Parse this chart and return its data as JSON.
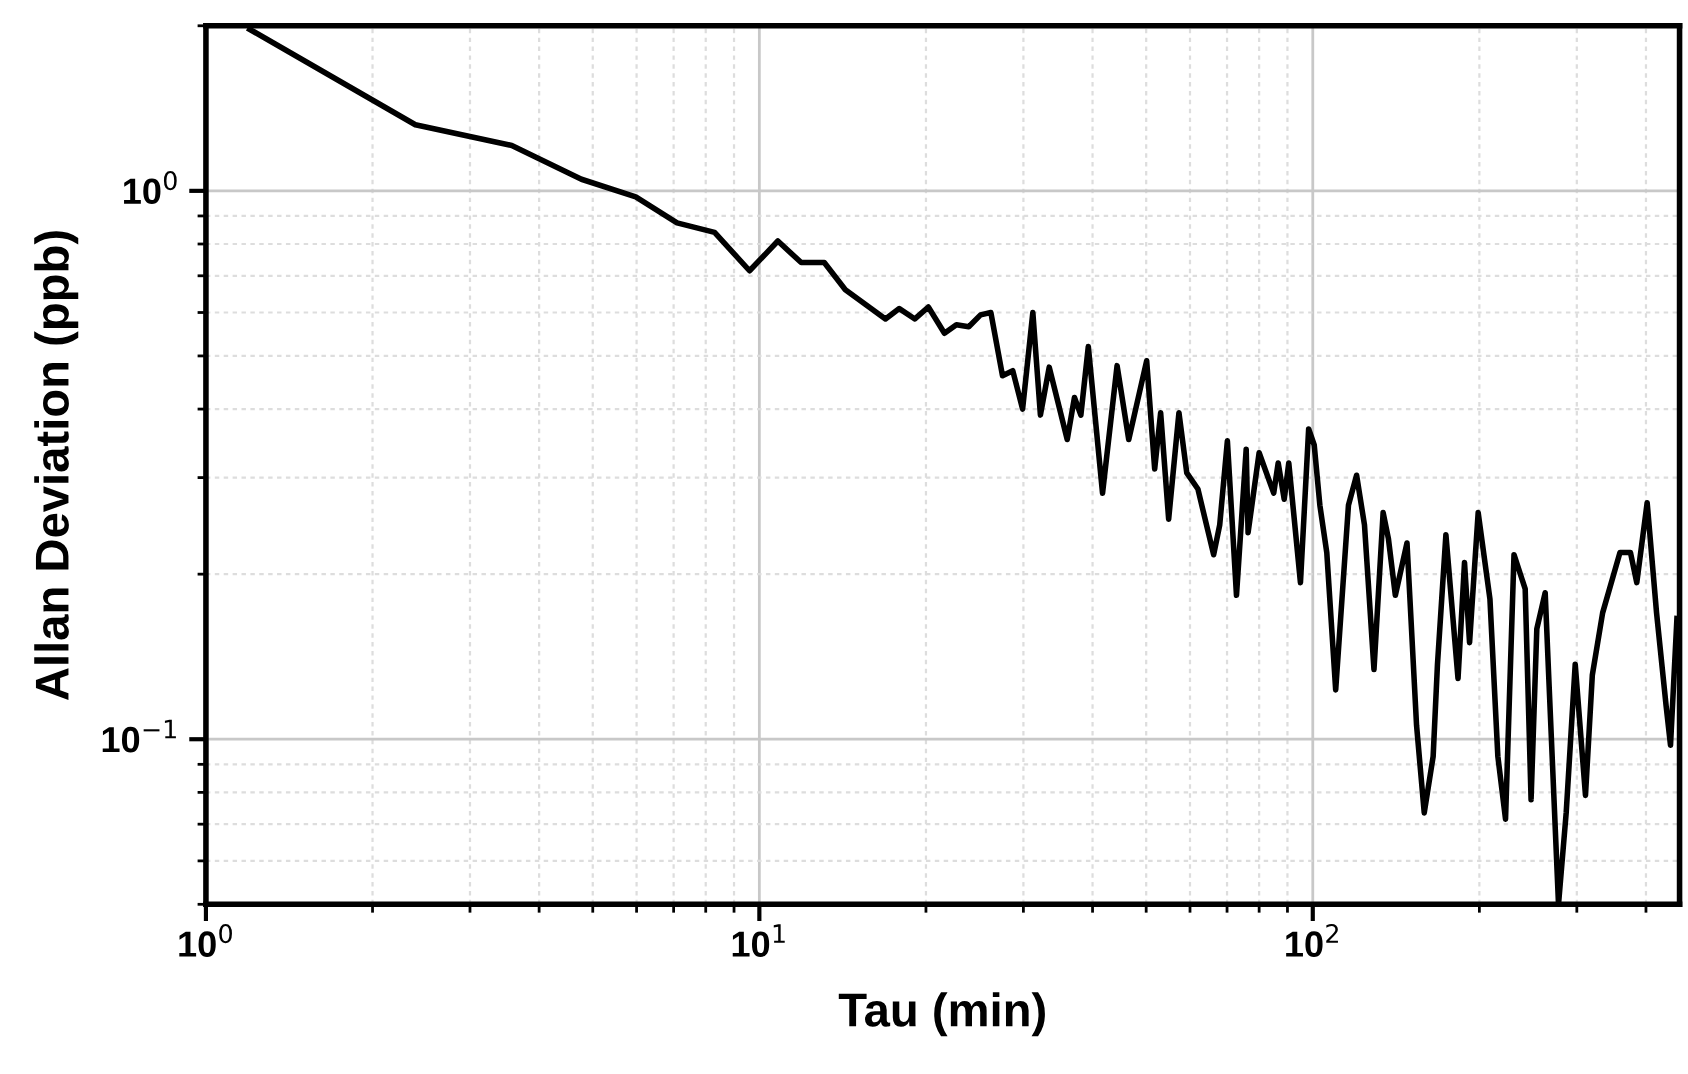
{
  "chart_data": {
    "type": "line",
    "xlabel": "Tau (min)",
    "ylabel": "Allan Deviation (ppb)",
    "log": "xy",
    "grid": true,
    "marker": "none",
    "line_style": "solid",
    "xlim": [
      1,
      460
    ],
    "ylim": [
      0.05,
      2
    ],
    "xticks": [
      {
        "value": 1,
        "label": "10$^{0}$"
      },
      {
        "value": 10,
        "label": "10$^{1}$"
      },
      {
        "value": 100,
        "label": "10$^{2}$"
      }
    ],
    "yticks": [
      {
        "value": 0.1,
        "label": "10$^{−1}$"
      },
      {
        "value": 1,
        "label": "10$^{0}$"
      }
    ],
    "series": [
      {
        "color": "#000000",
        "x": [
          1.2,
          2.39,
          3.57,
          4.77,
          5.98,
          7.1,
          8.3,
          9.6,
          10.8,
          11.9,
          13.1,
          14.3,
          16.9,
          17.9,
          19.1,
          20.2,
          21.6,
          22.7,
          23.9,
          25.1,
          26.2,
          27.5,
          28.7,
          29.9,
          31.2,
          32.2,
          33.4,
          36.0,
          37.1,
          38.1,
          39.3,
          41.7,
          44.3,
          46.5,
          50.1,
          51.8,
          53.1,
          54.9,
          57.3,
          59.2,
          62.0,
          66.2,
          67.9,
          70.1,
          72.8,
          75.8,
          76.4,
          80.0,
          85.0,
          86.6,
          88.8,
          90.5,
          95.0,
          98.3,
          100.6,
          103,
          106,
          110,
          116,
          120,
          124,
          129,
          134,
          137,
          141,
          148,
          154,
          159,
          165,
          168,
          174,
          183,
          188,
          192,
          199,
          209,
          216,
          223,
          231,
          242,
          248,
          254,
          263,
          267,
          278,
          287,
          298,
          311,
          320,
          334,
          359,
          375,
          385,
          402,
          418,
          435,
          443,
          455
        ],
        "values": [
          1.97,
          1.32,
          1.21,
          1.05,
          0.975,
          0.874,
          0.84,
          0.715,
          0.81,
          0.74,
          0.74,
          0.66,
          0.584,
          0.61,
          0.584,
          0.614,
          0.55,
          0.57,
          0.565,
          0.594,
          0.6,
          0.46,
          0.47,
          0.4,
          0.6,
          0.39,
          0.477,
          0.352,
          0.42,
          0.39,
          0.52,
          0.281,
          0.48,
          0.352,
          0.49,
          0.311,
          0.394,
          0.252,
          0.394,
          0.306,
          0.286,
          0.217,
          0.246,
          0.35,
          0.183,
          0.338,
          0.238,
          0.333,
          0.281,
          0.319,
          0.274,
          0.319,
          0.193,
          0.368,
          0.344,
          0.267,
          0.219,
          0.123,
          0.267,
          0.303,
          0.246,
          0.134,
          0.259,
          0.232,
          0.183,
          0.228,
          0.106,
          0.0734,
          0.093,
          0.137,
          0.236,
          0.129,
          0.21,
          0.15,
          0.259,
          0.18,
          0.093,
          0.0715,
          0.217,
          0.188,
          0.0776,
          0.159,
          0.185,
          0.129,
          0.05,
          0.0734,
          0.137,
          0.079,
          0.131,
          0.17,
          0.219,
          0.219,
          0.193,
          0.27,
          0.17,
          0.115,
          0.0975,
          0.166
        ]
      }
    ]
  }
}
